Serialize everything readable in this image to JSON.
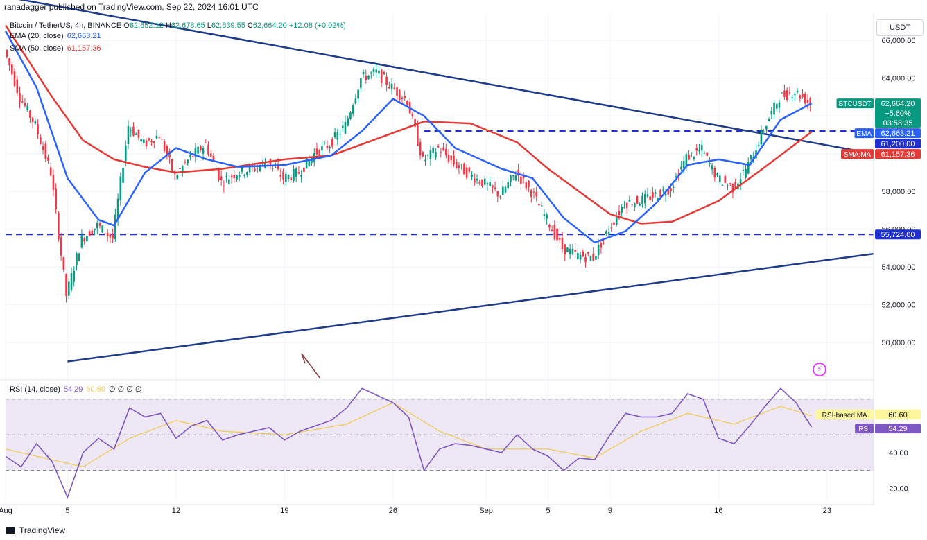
{
  "header": {
    "text": "ranadagger published on TradingView.com, Sep 22, 2024 16:01 UTC"
  },
  "legend": {
    "symbol": "Bitcoin / TetherUS, 4h, BINANCE",
    "open_label": "O",
    "open": "62,652.12",
    "high_label": "H",
    "high": "62,678.65",
    "low_label": "L",
    "low": "62,639.55",
    "close_label": "C",
    "close": "62,664.20",
    "change": "+12.08 (+0.02%)",
    "ema_label": "EMA (20, close)",
    "ema_value": "62,663.21",
    "sma_label": "SMA (50, close)",
    "sma_value": "61,157.36",
    "rsi_label": "RSI (14, close)",
    "rsi_value": "54.29",
    "rsi_ma_value": "60.60",
    "rsi_extra": "∅ ∅ ∅ ∅"
  },
  "axis_unit": "USDT",
  "branding": "TradingView",
  "colors": {
    "up": "#089981",
    "down": "#f23645",
    "ema": "#2962ff",
    "sma": "#e53935",
    "trend": "#1e3a8a",
    "hline": "#1f2fd0",
    "rsi": "#7e57c2",
    "rsi_ma": "#f2c94c",
    "rsi_band": "#ede7f6",
    "grid": "#f0f3fa",
    "text": "#131722",
    "arrow": "#8b3a3a"
  },
  "chart_data": {
    "type": "candlestick",
    "x_unit": "date",
    "price_axis": {
      "range": [
        48100,
        67400
      ],
      "ticks": [
        "50,000.00",
        "52,000.00",
        "54,000.00",
        "56,000.00",
        "58,000.00",
        "60,000.00",
        "62,000.00",
        "64,000.00",
        "66,000.00"
      ],
      "tick_values": [
        50000,
        52000,
        54000,
        56000,
        58000,
        60000,
        62000,
        64000,
        66000
      ]
    },
    "x_axis": {
      "range": [
        "2024-08-01",
        "2024-09-26"
      ],
      "ticks": [
        {
          "date": "2024-08-01",
          "label": "Aug"
        },
        {
          "date": "2024-08-05",
          "label": "5"
        },
        {
          "date": "2024-08-12",
          "label": "12"
        },
        {
          "date": "2024-08-19",
          "label": "19"
        },
        {
          "date": "2024-08-26",
          "label": "26"
        },
        {
          "date": "2024-09-01",
          "label": "Sep"
        },
        {
          "date": "2024-09-05",
          "label": "5"
        },
        {
          "date": "2024-09-09",
          "label": "9"
        },
        {
          "date": "2024-09-16",
          "label": "16"
        },
        {
          "date": "2024-09-23",
          "label": "23"
        }
      ]
    },
    "price_path": [
      [
        "2024-08-01",
        65500
      ],
      [
        "2024-08-02",
        63000
      ],
      [
        "2024-08-03",
        61500
      ],
      [
        "2024-08-04",
        59000
      ],
      [
        "2024-08-05",
        52500
      ],
      [
        "2024-08-06",
        55500
      ],
      [
        "2024-08-07",
        56200
      ],
      [
        "2024-08-08",
        55500
      ],
      [
        "2024-08-09",
        61500
      ],
      [
        "2024-08-10",
        60500
      ],
      [
        "2024-08-11",
        61000
      ],
      [
        "2024-08-12",
        58800
      ],
      [
        "2024-08-13",
        59800
      ],
      [
        "2024-08-14",
        60500
      ],
      [
        "2024-08-15",
        58500
      ],
      [
        "2024-08-16",
        59000
      ],
      [
        "2024-08-17",
        59200
      ],
      [
        "2024-08-18",
        59600
      ],
      [
        "2024-08-19",
        58700
      ],
      [
        "2024-08-20",
        59000
      ],
      [
        "2024-08-21",
        60000
      ],
      [
        "2024-08-22",
        60500
      ],
      [
        "2024-08-23",
        61500
      ],
      [
        "2024-08-24",
        64000
      ],
      [
        "2024-08-25",
        64300
      ],
      [
        "2024-08-26",
        63500
      ],
      [
        "2024-08-27",
        62800
      ],
      [
        "2024-08-28",
        59600
      ],
      [
        "2024-08-29",
        60300
      ],
      [
        "2024-08-30",
        59500
      ],
      [
        "2024-08-31",
        58900
      ],
      [
        "2024-09-01",
        58400
      ],
      [
        "2024-09-02",
        57800
      ],
      [
        "2024-09-03",
        59000
      ],
      [
        "2024-09-04",
        58000
      ],
      [
        "2024-09-05",
        56500
      ],
      [
        "2024-09-06",
        55000
      ],
      [
        "2024-09-07",
        54600
      ],
      [
        "2024-09-08",
        54500
      ],
      [
        "2024-09-09",
        56000
      ],
      [
        "2024-09-10",
        57400
      ],
      [
        "2024-09-11",
        57500
      ],
      [
        "2024-09-12",
        57800
      ],
      [
        "2024-09-13",
        58200
      ],
      [
        "2024-09-14",
        59800
      ],
      [
        "2024-09-15",
        60200
      ],
      [
        "2024-09-16",
        58700
      ],
      [
        "2024-09-17",
        58200
      ],
      [
        "2024-09-18",
        59400
      ],
      [
        "2024-09-19",
        61300
      ],
      [
        "2024-09-20",
        63000
      ],
      [
        "2024-09-21",
        63300
      ],
      [
        "2024-09-22",
        62664
      ]
    ],
    "ema20": [
      [
        "2024-08-01",
        66500
      ],
      [
        "2024-08-03",
        63500
      ],
      [
        "2024-08-05",
        58700
      ],
      [
        "2024-08-07",
        56500
      ],
      [
        "2024-08-08",
        56200
      ],
      [
        "2024-08-10",
        59000
      ],
      [
        "2024-08-12",
        60300
      ],
      [
        "2024-08-14",
        59700
      ],
      [
        "2024-08-16",
        59300
      ],
      [
        "2024-08-19",
        59400
      ],
      [
        "2024-08-22",
        59900
      ],
      [
        "2024-08-24",
        61200
      ],
      [
        "2024-08-26",
        62900
      ],
      [
        "2024-08-28",
        62000
      ],
      [
        "2024-08-30",
        60300
      ],
      [
        "2024-09-02",
        59200
      ],
      [
        "2024-09-04",
        58700
      ],
      [
        "2024-09-06",
        56600
      ],
      [
        "2024-09-08",
        55300
      ],
      [
        "2024-09-10",
        55900
      ],
      [
        "2024-09-12",
        57400
      ],
      [
        "2024-09-14",
        59400
      ],
      [
        "2024-09-16",
        59700
      ],
      [
        "2024-09-18",
        59400
      ],
      [
        "2024-09-20",
        61800
      ],
      [
        "2024-09-22",
        62663
      ]
    ],
    "sma50": [
      [
        "2024-08-01",
        66800
      ],
      [
        "2024-08-04",
        63000
      ],
      [
        "2024-08-06",
        60700
      ],
      [
        "2024-08-08",
        59700
      ],
      [
        "2024-08-10",
        59300
      ],
      [
        "2024-08-12",
        59000
      ],
      [
        "2024-08-15",
        59200
      ],
      [
        "2024-08-19",
        59700
      ],
      [
        "2024-08-22",
        59900
      ],
      [
        "2024-08-26",
        61100
      ],
      [
        "2024-08-28",
        61700
      ],
      [
        "2024-08-31",
        61600
      ],
      [
        "2024-09-03",
        60600
      ],
      [
        "2024-09-05",
        59200
      ],
      [
        "2024-09-07",
        58000
      ],
      [
        "2024-09-09",
        56800
      ],
      [
        "2024-09-11",
        56300
      ],
      [
        "2024-09-13",
        56400
      ],
      [
        "2024-09-16",
        57500
      ],
      [
        "2024-09-19",
        59300
      ],
      [
        "2024-09-22",
        61157
      ]
    ],
    "trendlines": [
      {
        "name": "upper",
        "from": [
          "2024-08-01",
          68300
        ],
        "to": [
          "2024-09-26",
          60000
        ]
      },
      {
        "name": "lower",
        "from": [
          "2024-08-05",
          49000
        ],
        "to": [
          "2024-09-26",
          54700
        ]
      }
    ],
    "horizontal_levels": [
      {
        "value": 61200,
        "label": "61,200.00",
        "from": "2024-08-28"
      },
      {
        "value": 55724,
        "label": "55,724.00",
        "from": "2024-08-01"
      }
    ],
    "price_labels": [
      {
        "text": "BTCUSDT",
        "value": 62664,
        "values": [
          "62,664.20",
          "−5.60%",
          "03:58:35"
        ]
      },
      {
        "text": "EMA",
        "value": 62663,
        "values": [
          "62,663.21"
        ]
      },
      {
        "text": "",
        "value": 61200,
        "values": [
          "61,200.00"
        ]
      },
      {
        "text": "SMA:MA",
        "value": 61157,
        "values": [
          "61,157.36"
        ]
      },
      {
        "text": "",
        "value": 55724,
        "values": [
          "55,724.00"
        ]
      }
    ],
    "rsi": {
      "range": [
        12,
        80
      ],
      "ticks": [
        "20.00",
        "40.00"
      ],
      "tick_values": [
        20,
        40
      ],
      "band": [
        30,
        70
      ],
      "labels": [
        {
          "text": "RSI-based MA",
          "value": 60.6,
          "display": "60.60"
        },
        {
          "text": "RSI",
          "value": 54.29,
          "display": "54.29"
        }
      ],
      "values": [
        [
          "2024-08-01",
          38
        ],
        [
          "2024-08-02",
          32
        ],
        [
          "2024-08-03",
          45
        ],
        [
          "2024-08-04",
          35
        ],
        [
          "2024-08-05",
          15
        ],
        [
          "2024-08-06",
          40
        ],
        [
          "2024-08-07",
          48
        ],
        [
          "2024-08-08",
          42
        ],
        [
          "2024-08-09",
          65
        ],
        [
          "2024-08-10",
          60
        ],
        [
          "2024-08-11",
          62
        ],
        [
          "2024-08-12",
          48
        ],
        [
          "2024-08-13",
          55
        ],
        [
          "2024-08-14",
          58
        ],
        [
          "2024-08-15",
          47
        ],
        [
          "2024-08-16",
          50
        ],
        [
          "2024-08-17",
          52
        ],
        [
          "2024-08-18",
          54
        ],
        [
          "2024-08-19",
          47
        ],
        [
          "2024-08-20",
          52
        ],
        [
          "2024-08-21",
          55
        ],
        [
          "2024-08-22",
          58
        ],
        [
          "2024-08-23",
          65
        ],
        [
          "2024-08-24",
          76
        ],
        [
          "2024-08-25",
          72
        ],
        [
          "2024-08-26",
          68
        ],
        [
          "2024-08-27",
          60
        ],
        [
          "2024-08-28",
          30
        ],
        [
          "2024-08-29",
          42
        ],
        [
          "2024-08-30",
          45
        ],
        [
          "2024-08-31",
          44
        ],
        [
          "2024-09-01",
          42
        ],
        [
          "2024-09-02",
          40
        ],
        [
          "2024-09-03",
          50
        ],
        [
          "2024-09-04",
          42
        ],
        [
          "2024-09-05",
          38
        ],
        [
          "2024-09-06",
          30
        ],
        [
          "2024-09-07",
          37
        ],
        [
          "2024-09-08",
          36
        ],
        [
          "2024-09-09",
          50
        ],
        [
          "2024-09-10",
          62
        ],
        [
          "2024-09-11",
          60
        ],
        [
          "2024-09-12",
          60
        ],
        [
          "2024-09-13",
          62
        ],
        [
          "2024-09-14",
          73
        ],
        [
          "2024-09-15",
          70
        ],
        [
          "2024-09-16",
          48
        ],
        [
          "2024-09-17",
          45
        ],
        [
          "2024-09-18",
          55
        ],
        [
          "2024-09-19",
          66
        ],
        [
          "2024-09-20",
          76
        ],
        [
          "2024-09-21",
          68
        ],
        [
          "2024-09-22",
          54.29
        ]
      ],
      "ma": [
        [
          "2024-08-01",
          42
        ],
        [
          "2024-08-04",
          36
        ],
        [
          "2024-08-06",
          32
        ],
        [
          "2024-08-09",
          48
        ],
        [
          "2024-08-12",
          58
        ],
        [
          "2024-08-15",
          52
        ],
        [
          "2024-08-19",
          50
        ],
        [
          "2024-08-23",
          56
        ],
        [
          "2024-08-26",
          68
        ],
        [
          "2024-08-29",
          52
        ],
        [
          "2024-09-01",
          42
        ],
        [
          "2024-09-05",
          42
        ],
        [
          "2024-09-08",
          37
        ],
        [
          "2024-09-11",
          52
        ],
        [
          "2024-09-14",
          62
        ],
        [
          "2024-09-17",
          56
        ],
        [
          "2024-09-20",
          66
        ],
        [
          "2024-09-22",
          60.6
        ]
      ]
    }
  }
}
